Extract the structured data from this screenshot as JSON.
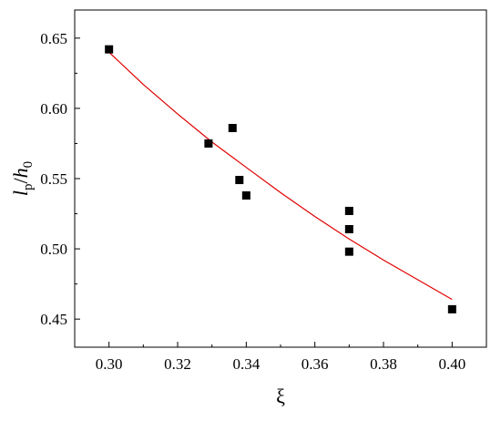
{
  "chart_data": {
    "type": "scatter",
    "title": "",
    "xlabel": "ξ",
    "ylabel": {
      "l": "l",
      "l_sub": "p",
      "slash": "/",
      "h": "h",
      "h_sub": "0"
    },
    "xlim": [
      0.29,
      0.41
    ],
    "ylim": [
      0.43,
      0.67
    ],
    "x_ticks": [
      0.3,
      0.32,
      0.34,
      0.36,
      0.38,
      0.4
    ],
    "x_tick_labels": [
      "0.30",
      "0.32",
      "0.34",
      "0.36",
      "0.38",
      "0.40"
    ],
    "y_ticks": [
      0.45,
      0.5,
      0.55,
      0.6,
      0.65
    ],
    "y_tick_labels": [
      "0.45",
      "0.50",
      "0.55",
      "0.60",
      "0.65"
    ],
    "grid": false,
    "series": [
      {
        "kind": "points",
        "marker": "square",
        "color": "#000000",
        "x": [
          0.3,
          0.329,
          0.336,
          0.338,
          0.34,
          0.37,
          0.37,
          0.37,
          0.4
        ],
        "y": [
          0.642,
          0.575,
          0.586,
          0.549,
          0.538,
          0.527,
          0.514,
          0.498,
          0.457
        ]
      },
      {
        "kind": "fit-line",
        "color": "#e00000",
        "x": [
          0.3,
          0.31,
          0.32,
          0.33,
          0.34,
          0.35,
          0.36,
          0.37,
          0.38,
          0.39,
          0.4
        ],
        "y": [
          0.64,
          0.617,
          0.596,
          0.576,
          0.558,
          0.54,
          0.523,
          0.507,
          0.492,
          0.478,
          0.464
        ]
      }
    ]
  }
}
